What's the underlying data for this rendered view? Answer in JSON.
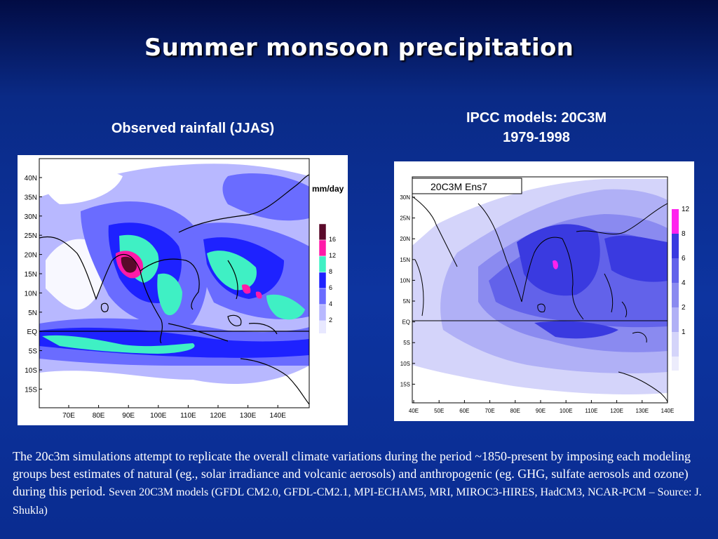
{
  "slide": {
    "title": "Summer monsoon precipitation",
    "left_heading": "Observed rainfall (JJAS)",
    "right_heading_line1": "IPCC models: 20C3M",
    "right_heading_line2": "1979-1998",
    "caption_main": "The 20c3m simulations attempt to replicate the overall climate variations during the period ~1850-present by imposing each modeling groups best estimates of natural (eg., solar irradiance and volcanic aerosols) and anthropogenic (eg. GHG, sulfate aerosols and ozone) during this period.",
    "caption_small": "Seven 20C3M models (GFDL CM2.0, GFDL-CM2.1, MPI-ECHAM5, MRI, MIROC3-HIRES, HadCM3, NCAR-PCM – Source: J. Shukla)"
  },
  "left_map": {
    "unit_label": "mm/day",
    "lat_labels": [
      "40N",
      "35N",
      "30N",
      "25N",
      "20N",
      "15N",
      "10N",
      "5N",
      "EQ",
      "5S",
      "10S",
      "15S"
    ],
    "lon_labels": [
      "70E",
      "80E",
      "90E",
      "100E",
      "110E",
      "120E",
      "130E",
      "140E"
    ],
    "colorbar": [
      {
        "label": "16",
        "color": "#5a0a2a"
      },
      {
        "label": "12",
        "color": "#ff1aa8"
      },
      {
        "label": "8",
        "color": "#3ff0c4"
      },
      {
        "label": "6",
        "color": "#1e22ff"
      },
      {
        "label": "4",
        "color": "#6a6cff"
      },
      {
        "label": "2",
        "color": "#b8b8ff"
      }
    ]
  },
  "right_map": {
    "panel_label": "20C3M Ens7",
    "lat_labels": [
      "30N",
      "25N",
      "20N",
      "15N",
      "10N",
      "5N",
      "EQ",
      "5S",
      "10S",
      "15S"
    ],
    "lon_labels": [
      "40E",
      "50E",
      "60E",
      "70E",
      "80E",
      "90E",
      "100E",
      "110E",
      "120E",
      "130E",
      "140E"
    ],
    "colorbar": [
      {
        "label": "12",
        "color": "#ff22ee"
      },
      {
        "label": "8",
        "color": "#3a3ae0"
      },
      {
        "label": "6",
        "color": "#6262ea"
      },
      {
        "label": "4",
        "color": "#8a8af0"
      },
      {
        "label": "2",
        "color": "#b0b0f6"
      },
      {
        "label": "1",
        "color": "#d4d4fa"
      }
    ]
  }
}
